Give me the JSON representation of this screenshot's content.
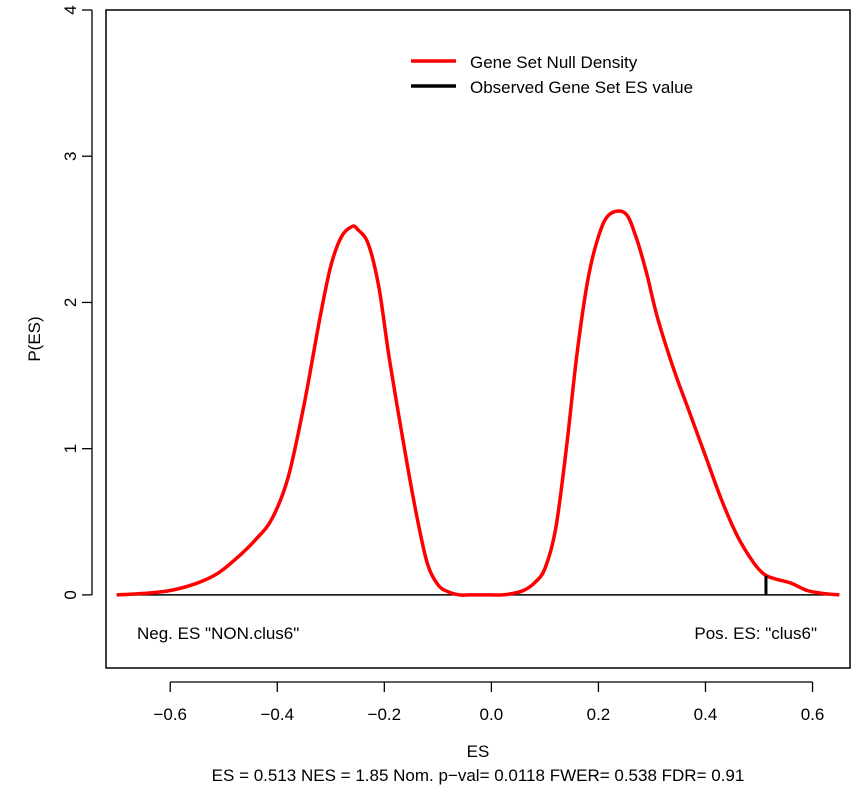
{
  "chart_data": {
    "type": "line",
    "title": "",
    "xlabel": "ES",
    "ylabel": "P(ES)",
    "subtitle": "ES = 0.513  NES = 1.85 Nom. p−val= 0.0118 FWER= 0.538 FDR= 0.91",
    "xlim": [
      -0.72,
      0.67
    ],
    "ylim": [
      -0.5,
      4.0
    ],
    "x_ticks": [
      -0.6,
      -0.4,
      -0.2,
      0.0,
      0.2,
      0.4,
      0.6
    ],
    "x_tick_labels": [
      "−0.6",
      "−0.4",
      "−0.2",
      "0.0",
      "0.2",
      "0.4",
      "0.6"
    ],
    "y_ticks": [
      0,
      1,
      2,
      3,
      4
    ],
    "y_tick_labels": [
      "0",
      "1",
      "2",
      "3",
      "4"
    ],
    "legend": {
      "position": "top-right",
      "entries": [
        {
          "name": "Gene Set Null Density",
          "color": "#ff0000"
        },
        {
          "name": "Observed Gene Set ES value",
          "color": "#000000"
        }
      ]
    },
    "annotations": {
      "neg_label": "Neg. ES \"NON.clus6\"",
      "pos_label": "Pos. ES: \"clus6\""
    },
    "series": [
      {
        "name": "Gene Set Null Density",
        "color": "#ff0000",
        "x": [
          -0.7,
          -0.65,
          -0.6,
          -0.55,
          -0.51,
          -0.47,
          -0.44,
          -0.41,
          -0.38,
          -0.35,
          -0.32,
          -0.3,
          -0.28,
          -0.26,
          -0.25,
          -0.23,
          -0.21,
          -0.19,
          -0.16,
          -0.14,
          -0.12,
          -0.1,
          -0.08,
          -0.06,
          -0.04,
          -0.02,
          0.0,
          0.02,
          0.04,
          0.06,
          0.08,
          0.1,
          0.12,
          0.14,
          0.16,
          0.18,
          0.2,
          0.22,
          0.25,
          0.27,
          0.29,
          0.31,
          0.34,
          0.37,
          0.4,
          0.43,
          0.46,
          0.49,
          0.51,
          0.53,
          0.56,
          0.59,
          0.62,
          0.65
        ],
        "y": [
          0.0,
          0.01,
          0.03,
          0.08,
          0.15,
          0.27,
          0.38,
          0.52,
          0.8,
          1.3,
          1.9,
          2.25,
          2.45,
          2.52,
          2.5,
          2.4,
          2.1,
          1.6,
          0.95,
          0.55,
          0.22,
          0.07,
          0.02,
          0.0,
          0.0,
          0.0,
          0.0,
          0.0,
          0.01,
          0.03,
          0.08,
          0.18,
          0.45,
          1.0,
          1.65,
          2.15,
          2.45,
          2.6,
          2.61,
          2.45,
          2.2,
          1.9,
          1.55,
          1.25,
          0.95,
          0.65,
          0.4,
          0.22,
          0.14,
          0.11,
          0.08,
          0.03,
          0.01,
          0.0
        ]
      }
    ],
    "observed_es": 0.513,
    "zero_line": 0
  }
}
